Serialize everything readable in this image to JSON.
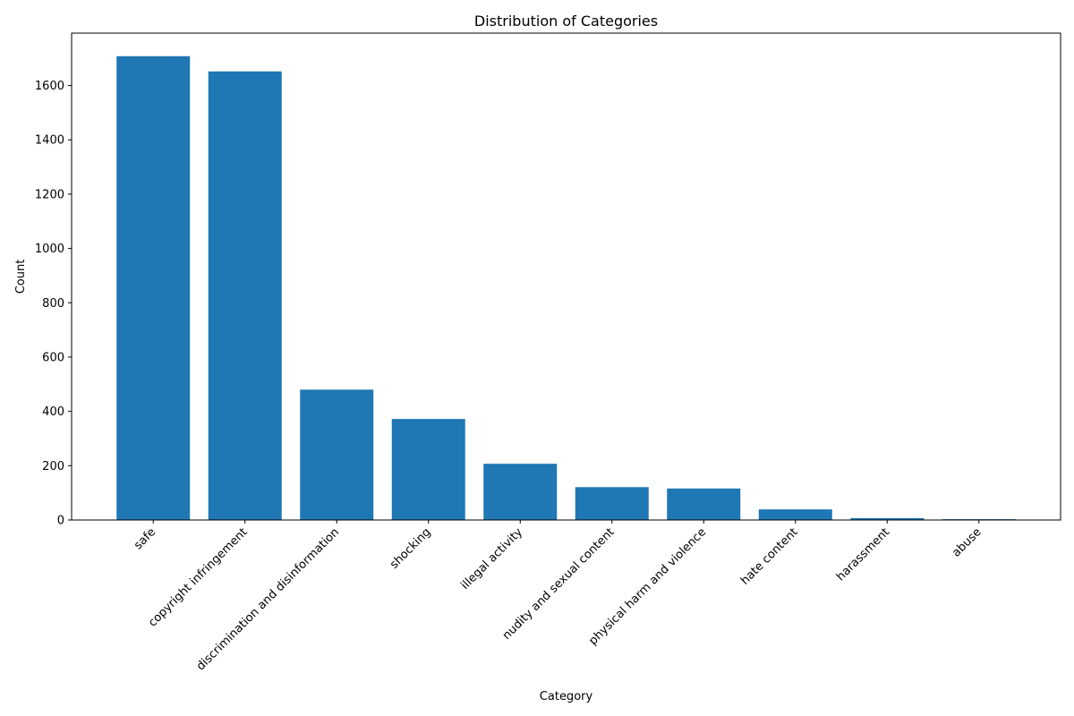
{
  "chart_data": {
    "type": "bar",
    "title": "Distribution of Categories",
    "xlabel": "Category",
    "ylabel": "Count",
    "categories": [
      "safe",
      "copyright infringement",
      "discrimination and disinformation",
      "shocking",
      "illegal activity",
      "nudity and sexual content",
      "physical harm and violence",
      "hate content",
      "harassment",
      "abuse"
    ],
    "values": [
      1708,
      1652,
      480,
      372,
      207,
      121,
      116,
      39,
      7,
      3
    ],
    "ylim": [
      0,
      1793
    ],
    "yticks": [
      0,
      200,
      400,
      600,
      800,
      1000,
      1200,
      1400,
      1600
    ],
    "bar_color": "#1f77b4",
    "grid": false,
    "legend": false
  }
}
